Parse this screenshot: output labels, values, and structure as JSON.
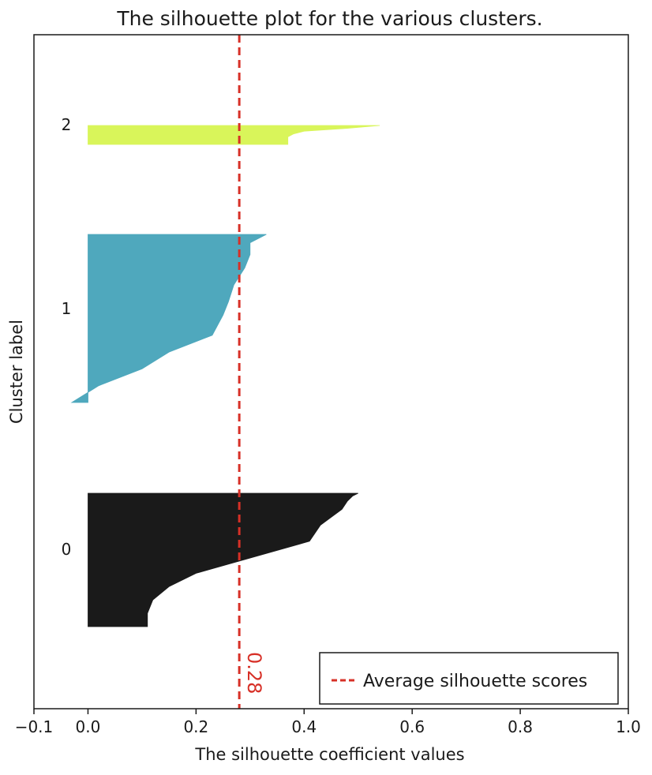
{
  "chart_data": {
    "type": "area",
    "title": "The silhouette plot for the various clusters.",
    "xlabel": "The silhouette coefficient values",
    "ylabel": "Cluster label",
    "xlim": [
      -0.1,
      1.0
    ],
    "xticks": [
      -0.1,
      0.0,
      0.2,
      0.4,
      0.6,
      0.8,
      1.0
    ],
    "xtick_labels": [
      "−0.1",
      "0.0",
      "0.2",
      "0.4",
      "0.6",
      "0.8",
      "1.0"
    ],
    "grid": false,
    "legend_position": "bottom-right",
    "average_silhouette_score": 0.28,
    "average_label": "0.28",
    "average_line_color": "#d73027",
    "legend_entries": [
      "Average silhouette scores"
    ],
    "clusters": [
      {
        "label": "0",
        "color": "#1a1a1a",
        "profile": [
          [
            0.0,
            0.5
          ],
          [
            0.02,
            0.49
          ],
          [
            0.06,
            0.48
          ],
          [
            0.12,
            0.47
          ],
          [
            0.18,
            0.45
          ],
          [
            0.24,
            0.43
          ],
          [
            0.3,
            0.42
          ],
          [
            0.36,
            0.41
          ],
          [
            0.44,
            0.34
          ],
          [
            0.52,
            0.27
          ],
          [
            0.6,
            0.2
          ],
          [
            0.7,
            0.15
          ],
          [
            0.8,
            0.12
          ],
          [
            0.9,
            0.11
          ],
          [
            1.0,
            0.11
          ]
        ]
      },
      {
        "label": "1",
        "color": "#4fa8bd",
        "profile": [
          [
            0.0,
            0.33
          ],
          [
            0.05,
            0.3
          ],
          [
            0.12,
            0.3
          ],
          [
            0.2,
            0.29
          ],
          [
            0.3,
            0.27
          ],
          [
            0.4,
            0.26
          ],
          [
            0.48,
            0.25
          ],
          [
            0.6,
            0.23
          ],
          [
            0.7,
            0.15
          ],
          [
            0.8,
            0.1
          ],
          [
            0.9,
            0.02
          ],
          [
            0.96,
            -0.01
          ],
          [
            1.0,
            -0.03
          ]
        ]
      },
      {
        "label": "2",
        "color": "#d9f55a",
        "profile": [
          [
            0.0,
            0.54
          ],
          [
            0.15,
            0.48
          ],
          [
            0.3,
            0.4
          ],
          [
            0.45,
            0.38
          ],
          [
            0.6,
            0.37
          ],
          [
            0.8,
            0.37
          ],
          [
            1.0,
            0.37
          ]
        ]
      }
    ]
  }
}
